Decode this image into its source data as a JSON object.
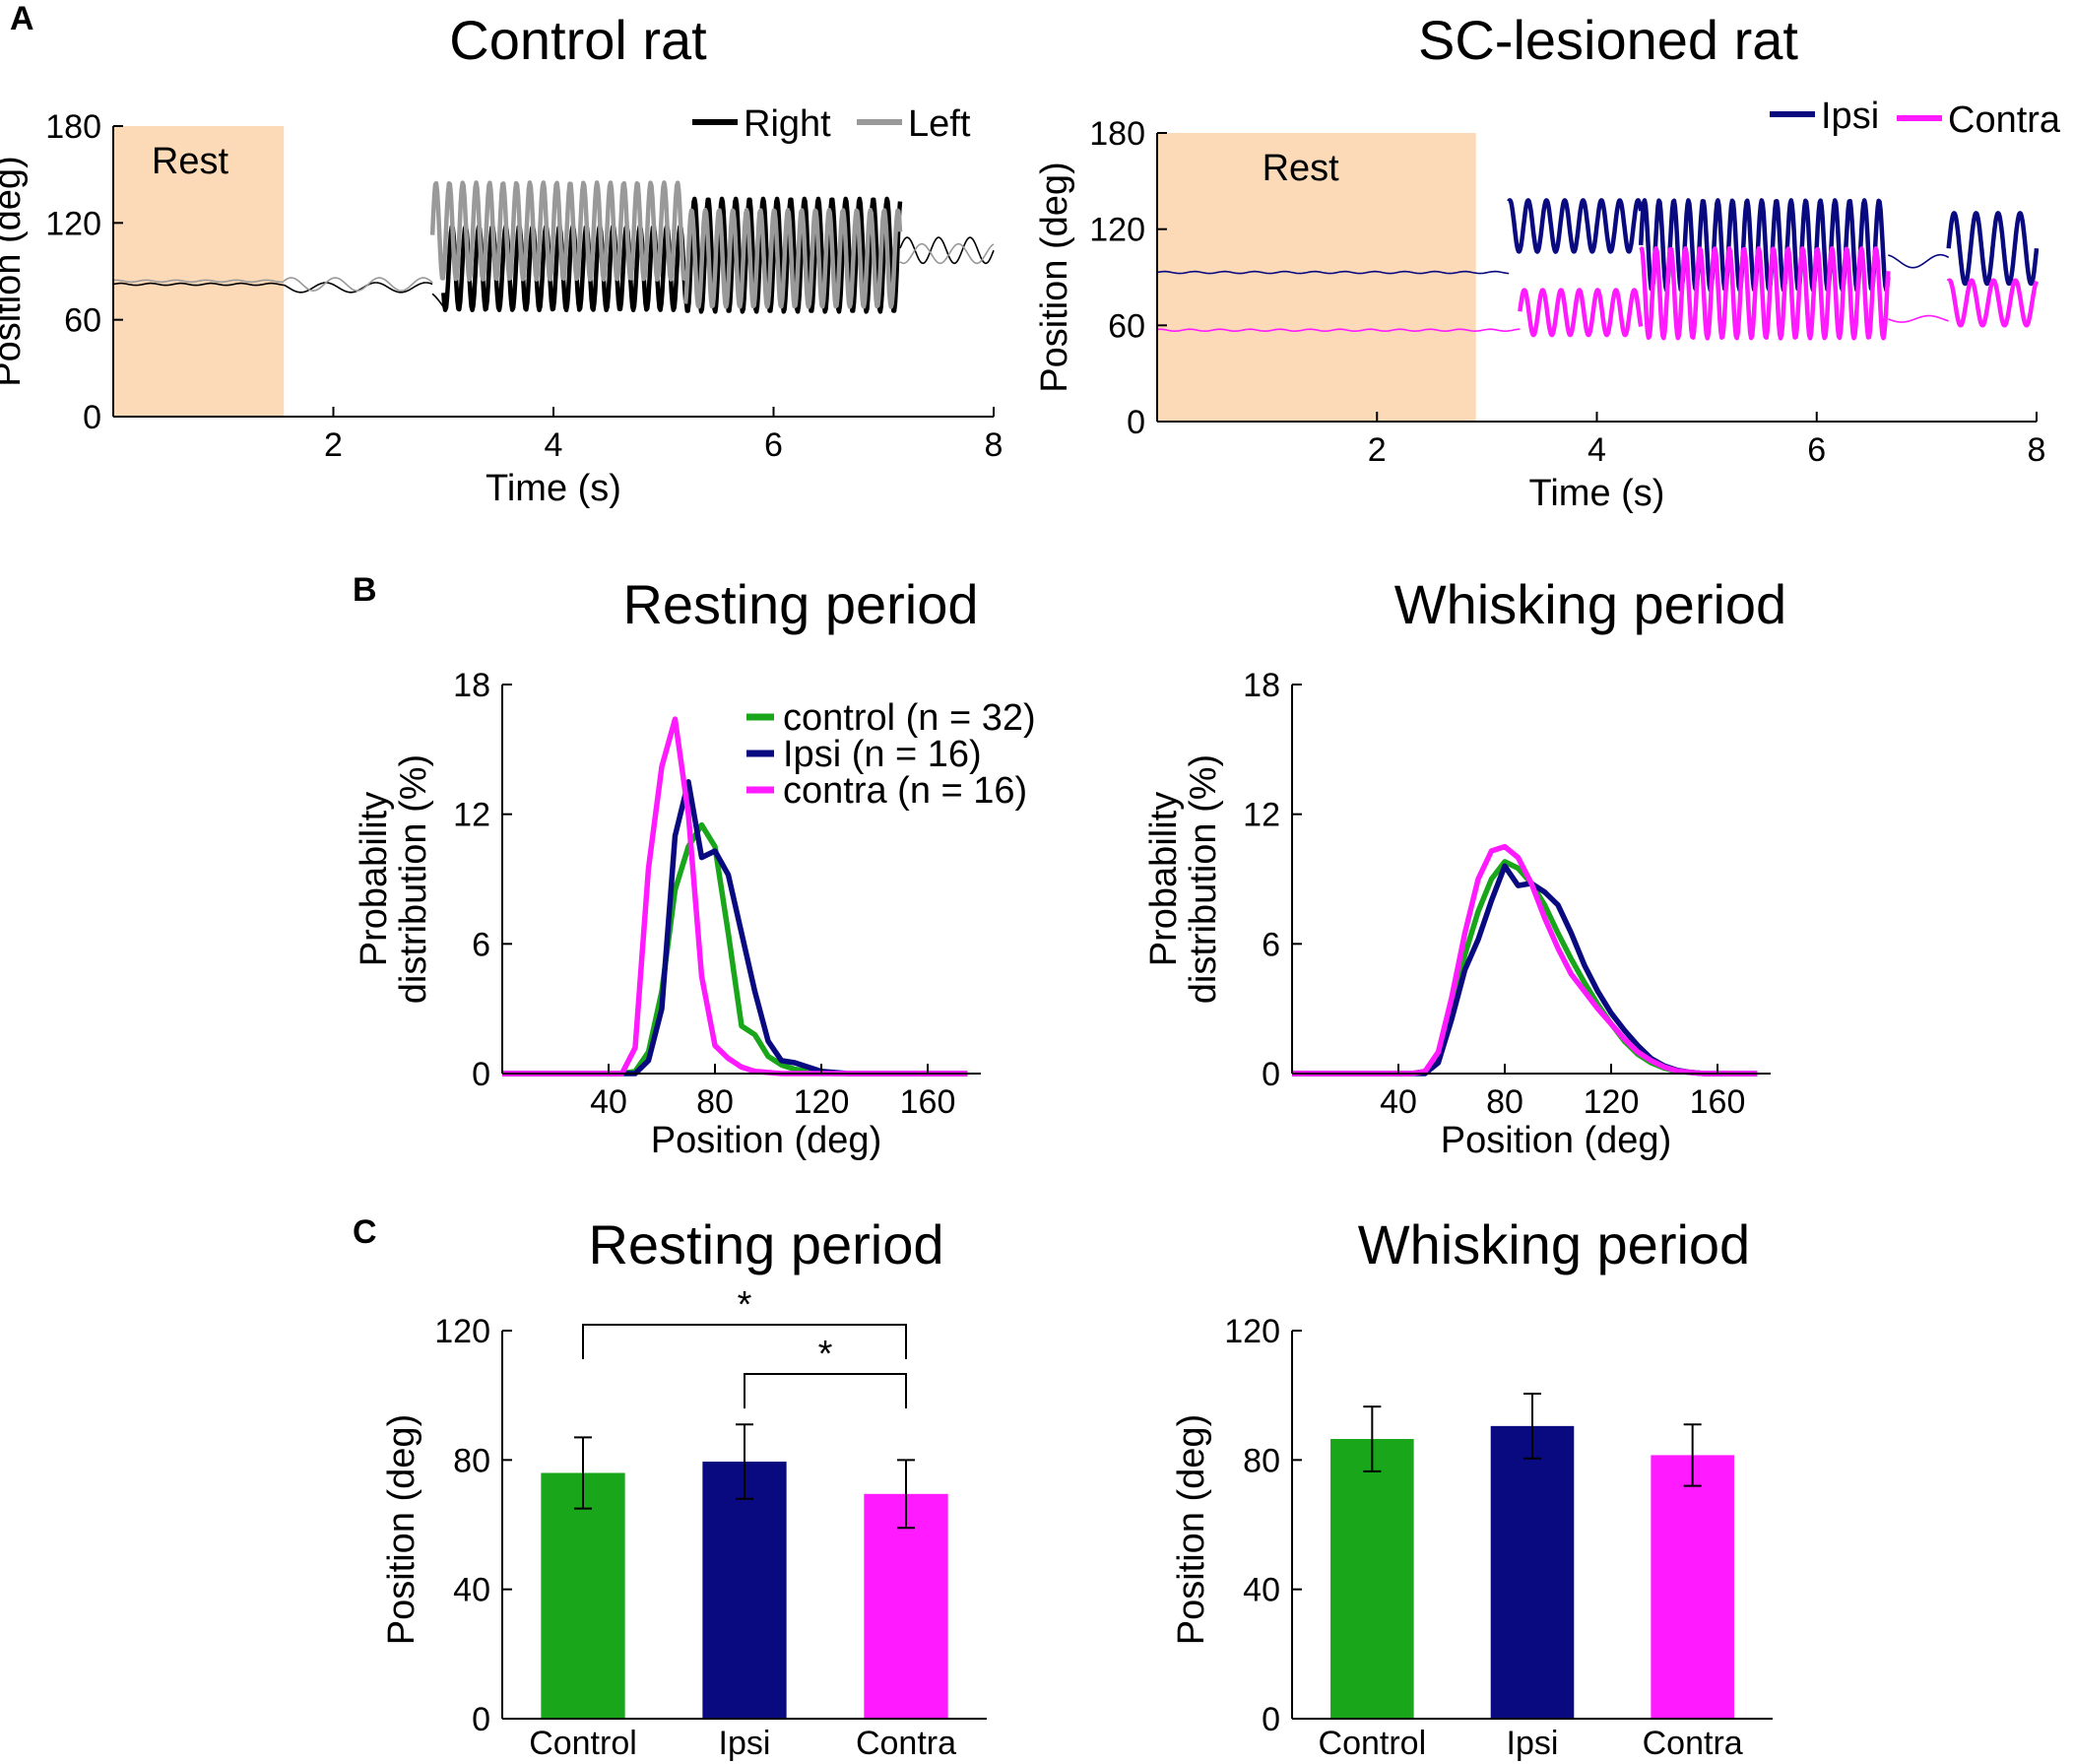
{
  "colors": {
    "right": "#000000",
    "left": "#999999",
    "ipsi": "#0a0a80",
    "contra": "#ff1aff",
    "control": "#1aa61a",
    "rest_fill": "#fcdab8"
  },
  "chart_data": [
    {
      "id": "A_control",
      "panel_label": "A",
      "type": "line",
      "title": "Control rat",
      "xlabel": "Time (s)",
      "ylabel": "Position (deg)",
      "xlim": [
        0,
        8
      ],
      "ylim": [
        0,
        180
      ],
      "xticks": [
        2,
        4,
        6,
        8
      ],
      "yticks": [
        0,
        60,
        120,
        180
      ],
      "rest_label": "Rest",
      "rest_span": [
        0,
        1.55
      ],
      "series": [
        {
          "name": "Right",
          "color_key": "right",
          "segments": [
            {
              "t": [
                0,
                1.55
              ],
              "mean": 82,
              "amp": 0,
              "freq": 0,
              "width": "thin"
            },
            {
              "t": [
                1.55,
                2.9
              ],
              "mean": 80,
              "amp": 3,
              "freq": 2.2,
              "width": "thin"
            },
            {
              "t": [
                2.9,
                3.0
              ],
              "mean": 68,
              "amp": 10,
              "freq": 1.5,
              "width": "thin"
            },
            {
              "t": [
                3.0,
                5.2
              ],
              "mean": 92,
              "amp": 26,
              "freq": 8.2,
              "width": "thick"
            },
            {
              "t": [
                5.2,
                7.15
              ],
              "mean": 100,
              "amp": 35,
              "freq": 8.0,
              "width": "thick"
            },
            {
              "t": [
                7.15,
                8.0
              ],
              "mean": 103,
              "amp": 8,
              "freq": 3.5,
              "width": "thin"
            }
          ]
        },
        {
          "name": "Left",
          "color_key": "left",
          "segments": [
            {
              "t": [
                0,
                1.55
              ],
              "mean": 84,
              "amp": 0,
              "freq": 0,
              "width": "thin"
            },
            {
              "t": [
                1.55,
                2.9
              ],
              "mean": 82,
              "amp": 4,
              "freq": 2.5,
              "width": "thin"
            },
            {
              "t": [
                2.9,
                5.2
              ],
              "mean": 115,
              "amp": 30,
              "freq": 8.2,
              "width": "thick"
            },
            {
              "t": [
                5.2,
                7.15
              ],
              "mean": 98,
              "amp": 30,
              "freq": 8.0,
              "width": "thick"
            },
            {
              "t": [
                7.15,
                8.0
              ],
              "mean": 101,
              "amp": 6,
              "freq": 3.0,
              "width": "thin"
            }
          ]
        }
      ]
    },
    {
      "id": "A_lesion",
      "type": "line",
      "title": "SC-lesioned rat",
      "xlabel": "Time (s)",
      "ylabel": "Position (deg)",
      "xlim": [
        0,
        8
      ],
      "ylim": [
        0,
        180
      ],
      "xticks": [
        2,
        4,
        6,
        8
      ],
      "yticks": [
        0,
        60,
        120,
        180
      ],
      "rest_label": "Rest",
      "rest_span": [
        0,
        2.9
      ],
      "series": [
        {
          "name": "Ipsi",
          "color_key": "ipsi",
          "segments": [
            {
              "t": [
                0,
                3.2
              ],
              "mean": 93,
              "amp": 0,
              "freq": 0,
              "width": "thin"
            },
            {
              "t": [
                3.2,
                4.4
              ],
              "mean": 122,
              "amp": 16,
              "freq": 6.0,
              "width": "thick"
            },
            {
              "t": [
                4.4,
                6.65
              ],
              "mean": 110,
              "amp": 28,
              "freq": 7.5,
              "width": "thick"
            },
            {
              "t": [
                6.65,
                7.2
              ],
              "mean": 100,
              "amp": 4,
              "freq": 2.0,
              "width": "thin"
            },
            {
              "t": [
                7.2,
                8.0
              ],
              "mean": 108,
              "amp": 22,
              "freq": 5.0,
              "width": "thick"
            }
          ]
        },
        {
          "name": "Contra",
          "color_key": "contra",
          "segments": [
            {
              "t": [
                0,
                3.3
              ],
              "mean": 57,
              "amp": 0,
              "freq": 0,
              "width": "thin"
            },
            {
              "t": [
                3.3,
                4.4
              ],
              "mean": 68,
              "amp": 14,
              "freq": 6.0,
              "width": "thick"
            },
            {
              "t": [
                4.4,
                6.65
              ],
              "mean": 80,
              "amp": 28,
              "freq": 7.5,
              "width": "thick"
            },
            {
              "t": [
                6.65,
                7.2
              ],
              "mean": 64,
              "amp": 2,
              "freq": 2.0,
              "width": "thin"
            },
            {
              "t": [
                7.2,
                8.0
              ],
              "mean": 74,
              "amp": 14,
              "freq": 5.0,
              "width": "thick"
            }
          ]
        }
      ]
    },
    {
      "id": "B_rest",
      "panel_label": "B",
      "type": "line",
      "title": "Resting period",
      "xlabel": "Position (deg)",
      "ylabel_line1": "Probability",
      "ylabel_line2": "distribution (%)",
      "xlim": [
        0,
        180
      ],
      "ylim": [
        0,
        18
      ],
      "xticks": [
        40,
        80,
        120,
        160
      ],
      "yticks": [
        0,
        6,
        12,
        18
      ],
      "x": [
        0,
        40,
        45,
        50,
        55,
        60,
        65,
        70,
        75,
        80,
        85,
        90,
        95,
        100,
        105,
        110,
        115,
        120,
        125,
        130,
        135,
        140,
        145,
        150,
        155,
        160,
        165,
        170,
        175
      ],
      "series": [
        {
          "name": "control (n = 32)",
          "color_key": "control",
          "values": [
            0,
            0,
            0,
            0.1,
            1.0,
            3.8,
            8.5,
            10.5,
            11.5,
            10.5,
            6.5,
            2.2,
            1.8,
            0.8,
            0.4,
            0.2,
            0.1,
            0.05,
            0,
            0,
            0,
            0,
            0,
            0,
            0,
            0,
            0,
            0,
            0
          ]
        },
        {
          "name": "Ipsi (n = 16)",
          "color_key": "ipsi",
          "values": [
            0,
            0,
            0,
            0,
            0.6,
            3.0,
            11.0,
            13.5,
            10.0,
            10.3,
            9.2,
            6.5,
            3.8,
            1.5,
            0.6,
            0.5,
            0.3,
            0.1,
            0.05,
            0,
            0,
            0,
            0,
            0,
            0,
            0,
            0,
            0,
            0
          ]
        },
        {
          "name": "contra (n = 16)",
          "color_key": "contra",
          "values": [
            0,
            0,
            0,
            1.2,
            9.5,
            14.2,
            16.4,
            12.0,
            4.5,
            1.3,
            0.7,
            0.3,
            0.1,
            0.05,
            0,
            0,
            0,
            0,
            0,
            0,
            0,
            0,
            0,
            0,
            0,
            0,
            0,
            0,
            0
          ]
        }
      ]
    },
    {
      "id": "B_whisk",
      "type": "line",
      "title": "Whisking period",
      "xlabel": "Position (deg)",
      "ylabel_line1": "Probability",
      "ylabel_line2": "distribution (%)",
      "xlim": [
        0,
        180
      ],
      "ylim": [
        0,
        18
      ],
      "xticks": [
        40,
        80,
        120,
        160
      ],
      "yticks": [
        0,
        6,
        12,
        18
      ],
      "x": [
        0,
        40,
        45,
        50,
        55,
        60,
        65,
        70,
        75,
        80,
        85,
        90,
        95,
        100,
        105,
        110,
        115,
        120,
        125,
        130,
        135,
        140,
        145,
        150,
        155,
        160,
        165,
        170,
        175
      ],
      "series": [
        {
          "name": "control",
          "color_key": "control",
          "values": [
            0,
            0,
            0,
            0.1,
            0.8,
            3.0,
            5.5,
            7.5,
            9.0,
            9.8,
            9.5,
            8.8,
            7.8,
            6.5,
            5.3,
            4.2,
            3.2,
            2.3,
            1.5,
            0.9,
            0.5,
            0.25,
            0.1,
            0.05,
            0,
            0,
            0,
            0,
            0
          ]
        },
        {
          "name": "Ipsi",
          "color_key": "ipsi",
          "values": [
            0,
            0,
            0,
            0,
            0.5,
            2.5,
            4.8,
            6.2,
            8.0,
            9.6,
            8.7,
            8.8,
            8.4,
            7.8,
            6.5,
            5.0,
            3.8,
            2.8,
            2.0,
            1.3,
            0.7,
            0.35,
            0.15,
            0.05,
            0,
            0,
            0,
            0,
            0
          ]
        },
        {
          "name": "contra",
          "color_key": "contra",
          "values": [
            0,
            0,
            0,
            0.1,
            1.0,
            3.5,
            6.5,
            9.0,
            10.3,
            10.5,
            10.0,
            8.8,
            7.2,
            5.8,
            4.6,
            3.8,
            3.0,
            2.3,
            1.6,
            1.0,
            0.6,
            0.3,
            0.12,
            0.05,
            0,
            0,
            0,
            0,
            0
          ]
        }
      ]
    },
    {
      "id": "C_rest",
      "panel_label": "C",
      "type": "bar",
      "title": "Resting period",
      "ylabel": "Position (deg)",
      "ylim": [
        0,
        120
      ],
      "yticks": [
        0,
        40,
        80,
        120
      ],
      "categories": [
        "Control",
        "Ipsi",
        "Contra"
      ],
      "values": [
        76,
        79.5,
        69.5
      ],
      "errors": [
        11,
        11.5,
        10.5
      ],
      "color_keys": [
        "control",
        "ipsi",
        "contra"
      ],
      "significance": [
        {
          "from": 0,
          "to": 2,
          "label": "*"
        },
        {
          "from": 1,
          "to": 2,
          "label": "*"
        }
      ]
    },
    {
      "id": "C_whisk",
      "type": "bar",
      "title": "Whisking period",
      "ylabel": "Position (deg)",
      "ylim": [
        0,
        120
      ],
      "yticks": [
        0,
        40,
        80,
        120
      ],
      "categories": [
        "Control",
        "Ipsi",
        "Contra"
      ],
      "values": [
        86.5,
        90.5,
        81.5
      ],
      "errors": [
        10,
        10,
        9.5
      ],
      "color_keys": [
        "control",
        "ipsi",
        "contra"
      ],
      "significance": []
    }
  ]
}
